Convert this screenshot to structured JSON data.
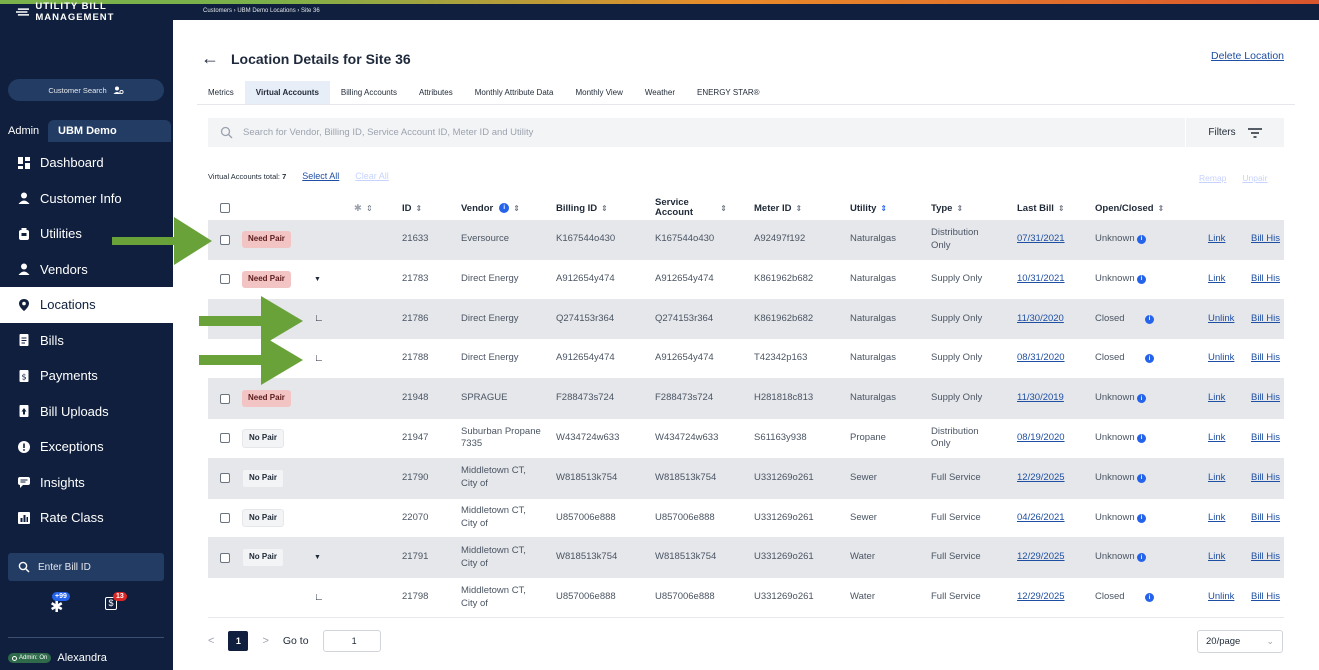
{
  "app": {
    "brand": "UTILITY BILL MANAGEMENT",
    "breadcrumb": "Customers › UBM Demo Locations › Site 36"
  },
  "sidebar": {
    "customer_search": "Customer Search",
    "admin_label": "Admin",
    "customer_tab": "UBM Demo",
    "nav": [
      {
        "label": "Dashboard",
        "icon": "dashboard-icon"
      },
      {
        "label": "Customer Info",
        "icon": "person-icon"
      },
      {
        "label": "Utilities",
        "icon": "utility-meter-icon"
      },
      {
        "label": "Vendors",
        "icon": "person-icon"
      },
      {
        "label": "Locations",
        "icon": "location-pin-icon",
        "active": true
      },
      {
        "label": "Bills",
        "icon": "document-icon"
      },
      {
        "label": "Payments",
        "icon": "dollar-document-icon"
      },
      {
        "label": "Bill Uploads",
        "icon": "upload-icon"
      },
      {
        "label": "Exceptions",
        "icon": "alert-icon"
      },
      {
        "label": "Insights",
        "icon": "comment-icon"
      },
      {
        "label": "Rate Class",
        "icon": "chart-icon"
      }
    ],
    "bill_id_placeholder": "Enter Bill ID",
    "badge_left": "+99",
    "badge_right": "13",
    "admin_toggle": "Admin: On",
    "user_name": "Alexandra"
  },
  "page": {
    "title": "Location Details for Site 36",
    "delete_label": "Delete Location",
    "tabs": [
      "Metrics",
      "Virtual Accounts",
      "Billing Accounts",
      "Attributes",
      "Monthly Attribute Data",
      "Monthly View",
      "Weather",
      "ENERGY STAR®"
    ],
    "active_tab": "Virtual Accounts",
    "search_placeholder": "Search for Vendor, Billing ID, Service Account ID, Meter ID and Utility",
    "filters_label": "Filters",
    "total_label": "Virtual Accounts total:",
    "total_value": "7",
    "select_all": "Select All",
    "clear_all": "Clear All",
    "remap": "Remap",
    "unpair": "Unpair"
  },
  "table": {
    "columns": {
      "id": "ID",
      "vendor": "Vendor",
      "billing_id": "Billing ID",
      "service_account": "Service Account",
      "meter_id": "Meter ID",
      "utility": "Utility",
      "type": "Type",
      "last_bill": "Last Bill",
      "open_closed": "Open/Closed"
    },
    "rows": [
      {
        "badge": "Need Pair",
        "badge_kind": "need",
        "checkbox": true,
        "expand": false,
        "child": false,
        "id": "21633",
        "vendor": "Eversource",
        "billing_id": "K167544o430",
        "service_account": "K167544o430",
        "meter_id": "A92497f192",
        "utility": "Naturalgas",
        "type": "Distribution Only",
        "last_bill": "07/31/2021",
        "status": "Unknown",
        "action": "Link",
        "history": "Bill His"
      },
      {
        "badge": "Need Pair",
        "badge_kind": "need",
        "checkbox": true,
        "expand": true,
        "child": false,
        "id": "21783",
        "vendor": "Direct Energy",
        "billing_id": "A912654y474",
        "service_account": "A912654y474",
        "meter_id": "K861962b682",
        "utility": "Naturalgas",
        "type": "Supply Only",
        "last_bill": "10/31/2021",
        "status": "Unknown",
        "action": "Link",
        "history": "Bill His"
      },
      {
        "badge": "",
        "badge_kind": "",
        "checkbox": false,
        "expand": false,
        "child": true,
        "id": "21786",
        "vendor": "Direct Energy",
        "billing_id": "Q274153r364",
        "service_account": "Q274153r364",
        "meter_id": "K861962b682",
        "utility": "Naturalgas",
        "type": "Supply Only",
        "last_bill": "11/30/2020",
        "status": "Closed",
        "action": "Unlink",
        "history": "Bill His"
      },
      {
        "badge": "",
        "badge_kind": "",
        "checkbox": false,
        "expand": false,
        "child": true,
        "id": "21788",
        "vendor": "Direct Energy",
        "billing_id": "A912654y474",
        "service_account": "A912654y474",
        "meter_id": "T42342p163",
        "utility": "Naturalgas",
        "type": "Supply Only",
        "last_bill": "08/31/2020",
        "status": "Closed",
        "action": "Unlink",
        "history": "Bill His"
      },
      {
        "badge": "Need Pair",
        "badge_kind": "need",
        "checkbox": true,
        "expand": false,
        "child": false,
        "id": "21948",
        "vendor": "SPRAGUE",
        "billing_id": "F288473s724",
        "service_account": "F288473s724",
        "meter_id": "H281818c813",
        "utility": "Naturalgas",
        "type": "Supply Only",
        "last_bill": "11/30/2019",
        "status": "Unknown",
        "action": "Link",
        "history": "Bill His"
      },
      {
        "badge": "No Pair",
        "badge_kind": "nopair",
        "checkbox": true,
        "expand": false,
        "child": false,
        "id": "21947",
        "vendor": "Suburban Propane 7335",
        "billing_id": "W434724w633",
        "service_account": "W434724w633",
        "meter_id": "S61163y938",
        "utility": "Propane",
        "type": "Distribution Only",
        "last_bill": "08/19/2020",
        "status": "Unknown",
        "action": "Link",
        "history": "Bill His"
      },
      {
        "badge": "No Pair",
        "badge_kind": "nopair",
        "checkbox": true,
        "expand": false,
        "child": false,
        "id": "21790",
        "vendor": "Middletown CT, City of",
        "billing_id": "W818513k754",
        "service_account": "W818513k754",
        "meter_id": "U331269o261",
        "utility": "Sewer",
        "type": "Full Service",
        "last_bill": "12/29/2025",
        "status": "Unknown",
        "action": "Link",
        "history": "Bill His"
      },
      {
        "badge": "No Pair",
        "badge_kind": "nopair",
        "checkbox": true,
        "expand": false,
        "child": false,
        "id": "22070",
        "vendor": "Middletown CT, City of",
        "billing_id": "U857006e888",
        "service_account": "U857006e888",
        "meter_id": "U331269o261",
        "utility": "Sewer",
        "type": "Full Service",
        "last_bill": "04/26/2021",
        "status": "Unknown",
        "action": "Link",
        "history": "Bill His"
      },
      {
        "badge": "No Pair",
        "badge_kind": "nopair",
        "checkbox": true,
        "expand": true,
        "child": false,
        "id": "21791",
        "vendor": "Middletown CT, City of",
        "billing_id": "W818513k754",
        "service_account": "W818513k754",
        "meter_id": "U331269o261",
        "utility": "Water",
        "type": "Full Service",
        "last_bill": "12/29/2025",
        "status": "Unknown",
        "action": "Link",
        "history": "Bill His"
      },
      {
        "badge": "",
        "badge_kind": "",
        "checkbox": false,
        "expand": false,
        "child": true,
        "id": "21798",
        "vendor": "Middletown CT, City of",
        "billing_id": "U857006e888",
        "service_account": "U857006e888",
        "meter_id": "U331269o261",
        "utility": "Water",
        "type": "Full Service",
        "last_bill": "12/29/2025",
        "status": "Closed",
        "action": "Unlink",
        "history": "Bill His"
      }
    ]
  },
  "pagination": {
    "current": "1",
    "goto_label": "Go to",
    "goto_value": "1",
    "per_page": "20/page"
  },
  "colors": {
    "sidebar_bg": "#0f1f3d",
    "annotation_arrow": "#6aa23a",
    "need_pair_badge": "#f2c4c4",
    "link": "#1f4fa3"
  }
}
